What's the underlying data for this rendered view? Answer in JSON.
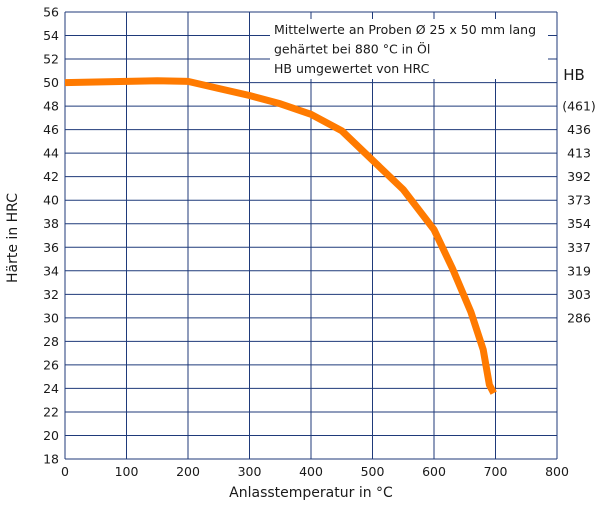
{
  "chart_data": {
    "type": "line",
    "title": "",
    "xlabel": "Anlasstemperatur in °C",
    "ylabel": "Härte in HRC",
    "xlim": [
      0,
      800
    ],
    "ylim": [
      18,
      56
    ],
    "x_ticks": [
      "0",
      "100",
      "200",
      "300",
      "400",
      "500",
      "600",
      "700",
      "800"
    ],
    "y_ticks": [
      "18",
      "20",
      "22",
      "24",
      "26",
      "28",
      "30",
      "32",
      "34",
      "36",
      "38",
      "40",
      "42",
      "44",
      "46",
      "48",
      "50",
      "52",
      "54",
      "56"
    ],
    "grid": true,
    "series": [
      {
        "color": "#ff7a00",
        "x": [
          0,
          50,
          100,
          150,
          200,
          250,
          300,
          350,
          400,
          450,
          500,
          550,
          600,
          630,
          660,
          680,
          690,
          697
        ],
        "y": [
          50.0,
          50.05,
          50.1,
          50.15,
          50.1,
          49.5,
          48.9,
          48.2,
          47.3,
          45.9,
          43.4,
          40.9,
          37.5,
          34.2,
          30.5,
          27.3,
          24.3,
          23.6
        ]
      }
    ],
    "secondary_axis": {
      "title": "HB",
      "labels": [
        {
          "hrc": 48,
          "label": "(461)"
        },
        {
          "hrc": 46,
          "label": "436"
        },
        {
          "hrc": 44,
          "label": "413"
        },
        {
          "hrc": 42,
          "label": "392"
        },
        {
          "hrc": 40,
          "label": "373"
        },
        {
          "hrc": 38,
          "label": "354"
        },
        {
          "hrc": 36,
          "label": "337"
        },
        {
          "hrc": 34,
          "label": "319"
        },
        {
          "hrc": 32,
          "label": "303"
        },
        {
          "hrc": 30,
          "label": "286"
        }
      ]
    },
    "annotation_lines": [
      "Mittelwerte an Proben Ø 25 x 50 mm lang",
      "gehärtet bei 880 °C in Öl",
      "HB umgewertet von HRC"
    ],
    "colors": {
      "grid": "#1f3a7a",
      "curve": "#ff7a00"
    }
  }
}
